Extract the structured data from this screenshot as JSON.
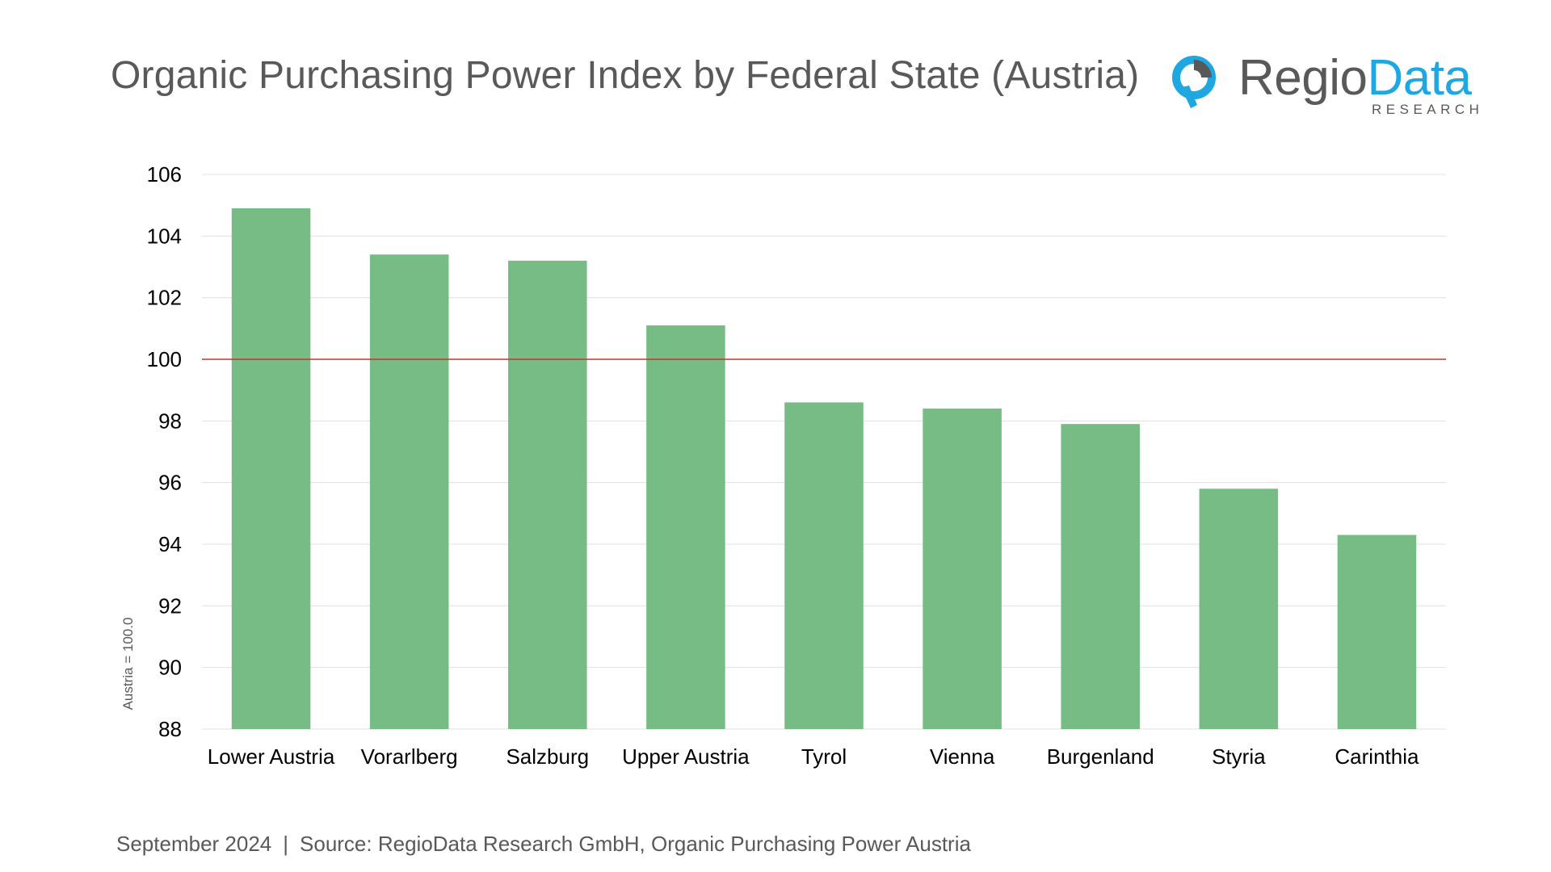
{
  "title": "Organic Purchasing Power Index by Federal State (Austria)",
  "logo": {
    "word_regio": "Regio",
    "word_data": "Data",
    "subtitle": "RESEARCH",
    "icon": "map-pin-icon",
    "colors": {
      "grey": "#58595b",
      "blue": "#1ea7e1"
    }
  },
  "footer": {
    "date": "September 2024",
    "separator": "|",
    "source": "Source: RegioData Research GmbH, Organic Purchasing Power Austria"
  },
  "chart_data": {
    "type": "bar",
    "title": "Organic Purchasing Power Index by Federal State (Austria)",
    "xlabel": "",
    "ylabel": "Austria = 100.0",
    "categories": [
      "Lower Austria",
      "Vorarlberg",
      "Salzburg",
      "Upper Austria",
      "Tyrol",
      "Vienna",
      "Burgenland",
      "Styria",
      "Carinthia"
    ],
    "values": [
      104.9,
      103.4,
      103.2,
      101.1,
      98.6,
      98.4,
      97.9,
      95.8,
      94.3
    ],
    "ylim": [
      88,
      106
    ],
    "yticks": [
      88,
      90,
      92,
      94,
      96,
      98,
      100,
      102,
      104,
      106
    ],
    "reference_line": 100,
    "grid": true,
    "legend": "none",
    "colors": {
      "bar": "#77bb85",
      "reference": "#c0392b",
      "grid": "#e0e0e0",
      "text": "#000000"
    }
  }
}
